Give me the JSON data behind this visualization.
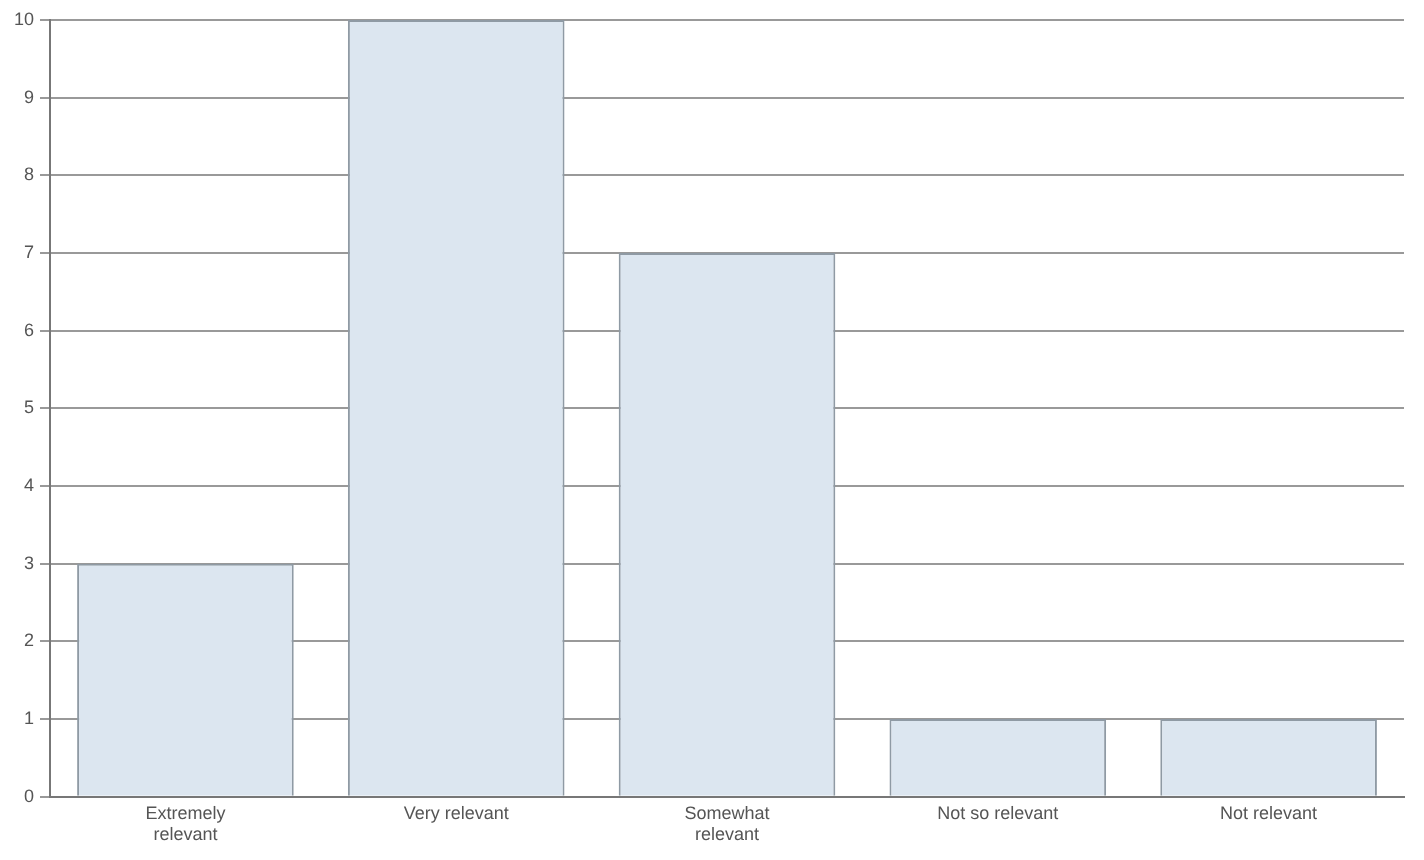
{
  "chart_data": {
    "type": "bar",
    "categories": [
      "Extremely relevant",
      "Very relevant",
      "Somewhat relevant",
      "Not so relevant",
      "Not relevant"
    ],
    "values": [
      3,
      10,
      7,
      1,
      1
    ],
    "color": "#dce6f0",
    "ylim": [
      0,
      10
    ],
    "yticks": [
      0,
      1,
      2,
      3,
      4,
      5,
      6,
      7,
      8,
      9,
      10
    ],
    "grid": "y",
    "legend": false
  }
}
